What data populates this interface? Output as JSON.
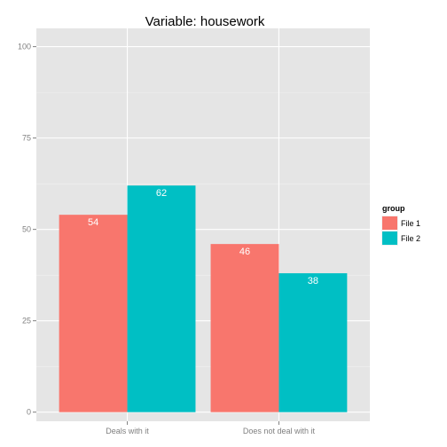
{
  "chart_data": {
    "type": "bar",
    "title": "Variable:  housework",
    "xlabel": "",
    "ylabel": "",
    "categories": [
      "Deals with it",
      "Does not deal with it"
    ],
    "series": [
      {
        "name": "File 1",
        "values": [
          54,
          46
        ],
        "labels": [
          "54",
          "46"
        ],
        "color": "#F8766D"
      },
      {
        "name": "File 2",
        "values": [
          62,
          38
        ],
        "labels": [
          "62",
          "38"
        ],
        "color": "#00BFC4"
      }
    ],
    "ylim": [
      -2.5,
      105
    ],
    "yticks": [
      0,
      25,
      50,
      75,
      100
    ],
    "ytick_labels": [
      "0",
      "25",
      "50",
      "75",
      "100"
    ],
    "grid": true,
    "legend": {
      "title": "group",
      "position": "right"
    },
    "panel_color": "#E5E5E5"
  }
}
